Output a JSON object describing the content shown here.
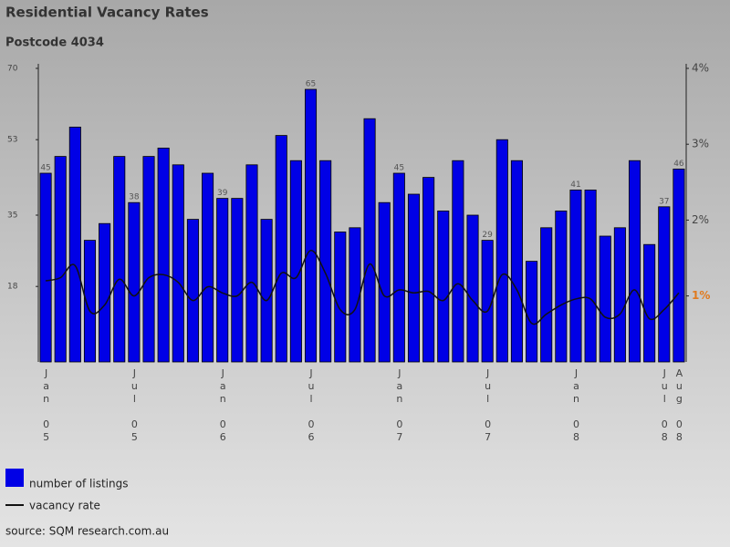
{
  "chart_data": {
    "type": "bar-line",
    "title": "Residential Vacancy Rates",
    "subtitle": "Postcode 4034",
    "source": "source: SQM research.com.au",
    "categories": [
      "Jan 05",
      null,
      null,
      null,
      null,
      null,
      "Jul 05",
      null,
      null,
      null,
      null,
      null,
      "Jan 06",
      null,
      null,
      null,
      null,
      null,
      "Jul 06",
      null,
      null,
      null,
      null,
      null,
      "Jan 07",
      null,
      null,
      null,
      null,
      null,
      "Jul 07",
      null,
      null,
      null,
      null,
      null,
      "Jan 08",
      null,
      null,
      null,
      null,
      null,
      "Jul 08",
      "Aug 08"
    ],
    "series": [
      {
        "name": "number of listings",
        "color": "#0000e6",
        "values": [
          45,
          49,
          56,
          29,
          33,
          49,
          38,
          49,
          51,
          47,
          34,
          45,
          39,
          39,
          47,
          34,
          54,
          48,
          65,
          48,
          31,
          32,
          58,
          38,
          45,
          40,
          44,
          36,
          48,
          35,
          29,
          53,
          48,
          24,
          32,
          36,
          41,
          41,
          30,
          32,
          48,
          28,
          37,
          46
        ],
        "value_labels": [
          "45",
          null,
          null,
          null,
          null,
          null,
          "38",
          null,
          null,
          null,
          null,
          null,
          "39",
          null,
          null,
          null,
          null,
          null,
          "65",
          null,
          null,
          null,
          null,
          null,
          "45",
          null,
          null,
          null,
          null,
          null,
          "29",
          null,
          null,
          null,
          null,
          null,
          "41",
          null,
          null,
          null,
          null,
          null,
          "37",
          "46"
        ]
      },
      {
        "name": "vacancy rate",
        "color": "#111111",
        "axis": "y2",
        "values": [
          1.2,
          1.24,
          1.4,
          0.8,
          0.88,
          1.22,
          1.0,
          1.24,
          1.28,
          1.18,
          0.94,
          1.12,
          1.04,
          1.0,
          1.18,
          0.94,
          1.3,
          1.24,
          1.6,
          1.3,
          0.82,
          0.82,
          1.42,
          1.0,
          1.08,
          1.04,
          1.06,
          0.94,
          1.16,
          0.94,
          0.8,
          1.28,
          1.08,
          0.64,
          0.76,
          0.88,
          0.96,
          0.96,
          0.72,
          0.76,
          1.08,
          0.7,
          0.82,
          1.04
        ]
      }
    ],
    "ylim": [
      0,
      70
    ],
    "yticks": [
      18,
      35,
      53,
      70
    ],
    "y2lim": [
      0.13,
      4
    ],
    "y2ticks": [
      {
        "value": 1,
        "label": "1%"
      },
      {
        "value": 2,
        "label": "2%"
      },
      {
        "value": 3,
        "label": "3%"
      },
      {
        "value": 4,
        "label": "4%"
      }
    ]
  }
}
